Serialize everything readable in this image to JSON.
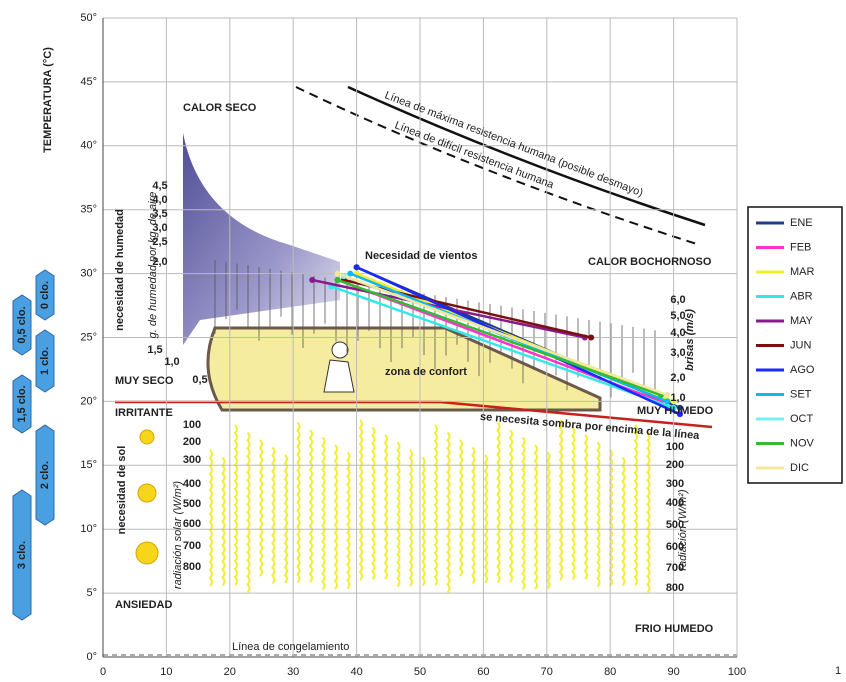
{
  "chart_data": {
    "type": "line",
    "y_label": "TEMPERATURA (°C)",
    "xlim": [
      0,
      100
    ],
    "xticks": [
      0,
      10,
      20,
      30,
      40,
      50,
      60,
      70,
      80,
      90,
      100
    ],
    "ylim": [
      0,
      50
    ],
    "yticks": [
      {
        "value": 0,
        "label": "0°"
      },
      {
        "value": 5,
        "label": "5°"
      },
      {
        "value": 10,
        "label": "10°"
      },
      {
        "value": 15,
        "label": "15°"
      },
      {
        "value": 20,
        "label": "20°"
      },
      {
        "value": 25,
        "label": "25°"
      },
      {
        "value": 30,
        "label": "30°"
      },
      {
        "value": 35,
        "label": "35°"
      },
      {
        "value": 40,
        "label": "40°"
      },
      {
        "value": 45,
        "label": "45°"
      },
      {
        "value": 50,
        "label": "50°"
      }
    ],
    "grid": true,
    "legend": "right",
    "series": [
      {
        "name": "ENE",
        "color": "#1f3c88",
        "x": [
          40,
          91
        ],
        "values": [
          30.5,
          19.5
        ]
      },
      {
        "name": "FEB",
        "color": "#ff33cc",
        "x": [
          37,
          88
        ],
        "values": [
          29.5,
          20
        ]
      },
      {
        "name": "MAR",
        "color": "#f2ee2a",
        "x": [
          40,
          90
        ],
        "values": [
          30,
          20
        ]
      },
      {
        "name": "ABR",
        "color": "#33e8e8",
        "x": [
          36,
          90
        ],
        "values": [
          29,
          19.5
        ]
      },
      {
        "name": "MAY",
        "color": "#8a1a8a",
        "x": [
          33,
          76
        ],
        "values": [
          29.5,
          25
        ]
      },
      {
        "name": "JUN",
        "color": "#7a0f0f",
        "x": [
          38,
          77
        ],
        "values": [
          29.5,
          25
        ]
      },
      {
        "name": "AGO",
        "color": "#1a2aff",
        "x": [
          40,
          91
        ],
        "values": [
          30.5,
          19
        ]
      },
      {
        "name": "SET",
        "color": "#10b8f0",
        "x": [
          39,
          89
        ],
        "values": [
          30,
          20
        ]
      },
      {
        "name": "OCT",
        "color": "#77f0f0",
        "x": [
          38,
          89
        ],
        "values": [
          29.8,
          20.5
        ]
      },
      {
        "name": "NOV",
        "color": "#33bb33",
        "x": [
          37,
          88
        ],
        "values": [
          29.5,
          20.5
        ]
      },
      {
        "name": "DIC",
        "color": "#f5e79a",
        "x": [
          37,
          89
        ],
        "values": [
          30,
          20.5
        ]
      }
    ],
    "annotations": [
      "CALOR SECO",
      "CALOR BOCHORNOSO",
      "MUY SECO",
      "IRRITANTE",
      "ANSIEDAD",
      "FRIO HUMEDO",
      "MUY HUMEDO",
      "zona de confort",
      "Necesidad de vientos",
      "Línea de máxima resistencia humana (posible desmayo)",
      "Línea de difícil resistencia humana",
      "se necesita sombra por encima de la línea",
      "Línea de congelamiento",
      "necesidad de humedad",
      "g. de humedad por kg. de aire",
      "necesidad de sol",
      "radiación solar (W/m²)",
      "radiación (W/m²)",
      "brisas (m/s)"
    ],
    "wind_labels": [
      "6,0",
      "5,0",
      "4,0",
      "3,0",
      "2,0",
      "1,0"
    ],
    "humidity_labels": [
      "4,5",
      "4,0",
      "3,5",
      "3,0",
      "2,5",
      "2,0",
      "1,5",
      "1,0",
      "0,5"
    ],
    "radiation_left": [
      "100",
      "200",
      "300",
      "400",
      "500",
      "600",
      "700",
      "800"
    ],
    "radiation_right": [
      "100",
      "200",
      "300",
      "400",
      "500",
      "600",
      "700",
      "800"
    ],
    "clo_labels": [
      "0 clo.",
      "0,5 clo.",
      "1 clo.",
      "1,5 clo.",
      "2 clo.",
      "3 clo."
    ],
    "page_number": "1"
  }
}
